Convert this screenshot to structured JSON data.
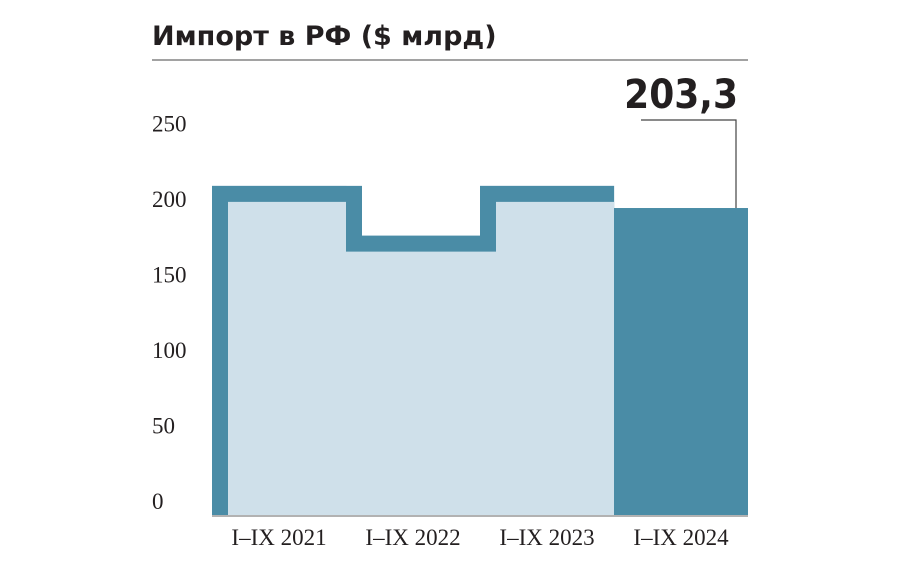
{
  "chart_data": {
    "type": "bar",
    "title": "Импорт в РФ ($ млрд)",
    "categories": [
      "I–IX 2021",
      "I–IX 2022",
      "I–IX 2023",
      "I–IX 2024"
    ],
    "values": [
      218,
      185,
      218,
      203.3
    ],
    "value_labels": [
      null,
      null,
      null,
      "203,3"
    ],
    "colors": [
      "#cfe0ea",
      "#cfe0ea",
      "#cfe0ea",
      "#4a8ca6"
    ],
    "border_color": "#4a8ca6",
    "ylim": [
      0,
      250
    ],
    "yticks": [
      0,
      50,
      100,
      150,
      200,
      250
    ],
    "grid": false
  }
}
